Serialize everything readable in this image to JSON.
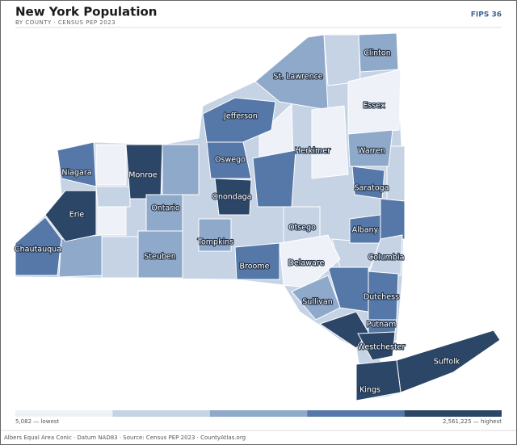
{
  "header": {
    "title": "New York Population",
    "subtitle": "BY COUNTY · CENSUS PEP 2023",
    "badge": "FIPS 36"
  },
  "legend": {
    "colors": [
      "#eef2f8",
      "#c5d3e4",
      "#8fa9cb",
      "#5578a8",
      "#2c4668"
    ],
    "low_label": "5,082 — lowest",
    "high_label": "2,561,225 — highest"
  },
  "counties": [
    {
      "name": "Clinton",
      "quintile": 3
    },
    {
      "name": "St. Lawrence",
      "quintile": 3
    },
    {
      "name": "Essex",
      "quintile": 1
    },
    {
      "name": "Jefferson",
      "quintile": 4
    },
    {
      "name": "Herkimer",
      "quintile": 1
    },
    {
      "name": "Warren",
      "quintile": 3
    },
    {
      "name": "Niagara",
      "quintile": 4
    },
    {
      "name": "Monroe",
      "quintile": 5
    },
    {
      "name": "Oswego",
      "quintile": 4
    },
    {
      "name": "Saratoga",
      "quintile": 4
    },
    {
      "name": "Erie",
      "quintile": 5
    },
    {
      "name": "Onondaga",
      "quintile": 5
    },
    {
      "name": "Ontario",
      "quintile": 3
    },
    {
      "name": "Otsego",
      "quintile": 2
    },
    {
      "name": "Albany",
      "quintile": 4
    },
    {
      "name": "Chautauqua",
      "quintile": 4
    },
    {
      "name": "Steuben",
      "quintile": 3
    },
    {
      "name": "Tompkins",
      "quintile": 3
    },
    {
      "name": "Columbia",
      "quintile": 2
    },
    {
      "name": "Broome",
      "quintile": 4
    },
    {
      "name": "Delaware",
      "quintile": 1
    },
    {
      "name": "Sullivan",
      "quintile": 3
    },
    {
      "name": "Dutchess",
      "quintile": 4
    },
    {
      "name": "Putnam",
      "quintile": 4
    },
    {
      "name": "Westchester",
      "quintile": 5
    },
    {
      "name": "Suffolk",
      "quintile": 5
    },
    {
      "name": "Kings",
      "quintile": 5
    }
  ],
  "footer": "Albers Equal Area Conic · Datum NAD83 · Source: Census PEP 2023 · CountyAtlas.org"
}
